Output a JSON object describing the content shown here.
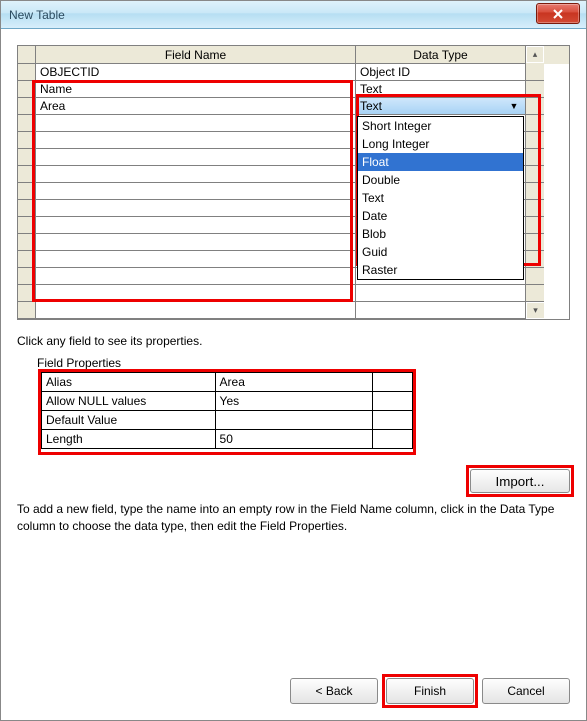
{
  "window": {
    "title": "New Table"
  },
  "grid": {
    "headers": {
      "field_name": "Field Name",
      "data_type": "Data Type"
    },
    "rows": [
      {
        "field": "OBJECTID",
        "type": "Object ID"
      },
      {
        "field": "Name",
        "type": "Text"
      },
      {
        "field": "Area",
        "type": "Text",
        "dropdown_open": true
      }
    ],
    "dropdown_options": [
      "Short Integer",
      "Long Integer",
      "Float",
      "Double",
      "Text",
      "Date",
      "Blob",
      "Guid",
      "Raster"
    ],
    "dropdown_selected": "Float",
    "empty_rows": 12
  },
  "help_line": "Click any field to see its properties.",
  "field_properties": {
    "label": "Field Properties",
    "rows": [
      {
        "k": "Alias",
        "v": "Area"
      },
      {
        "k": "Allow NULL values",
        "v": "Yes"
      },
      {
        "k": "Default Value",
        "v": ""
      },
      {
        "k": "Length",
        "v": "50"
      }
    ]
  },
  "buttons": {
    "import": "Import...",
    "back": "< Back",
    "finish": "Finish",
    "cancel": "Cancel"
  },
  "instruction": "To add a new field, type the name into an empty row in the Field Name column, click in the Data Type column to choose the data type, then edit the Field Properties.",
  "highlight_color": "#e00000"
}
